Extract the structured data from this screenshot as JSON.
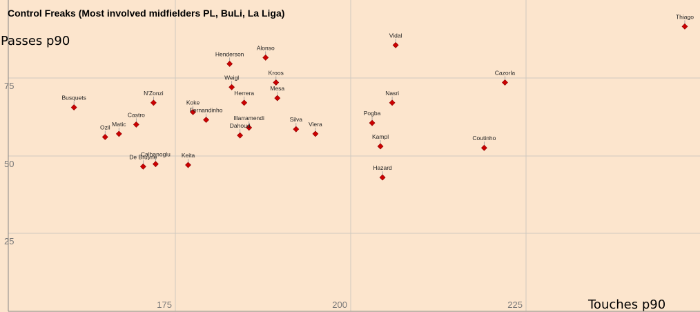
{
  "chart_data": {
    "type": "scatter",
    "title": "Control Freaks (Most involved midfielders PL, BuLi, La Liga)",
    "xlabel": "Touches p90",
    "ylabel": "Passes p90",
    "xlim": [
      150,
      250
    ],
    "ylim": [
      0,
      100
    ],
    "x_ticks": [
      "175",
      "200",
      "225"
    ],
    "y_ticks": [
      "25",
      "50",
      "75"
    ],
    "grid": true,
    "marker_color": "#cc0000",
    "points": [
      {
        "label": "Busquets",
        "x": 159.5,
        "y": 65.5
      },
      {
        "label": "Ozil",
        "x": 164,
        "y": 56
      },
      {
        "label": "Matic",
        "x": 166,
        "y": 57
      },
      {
        "label": "Castro",
        "x": 168.5,
        "y": 60
      },
      {
        "label": "N'Zonzi",
        "x": 171,
        "y": 67
      },
      {
        "label": "De Bruyne",
        "x": 169.5,
        "y": 46.5
      },
      {
        "label": "Calhanoglu",
        "x": 171.3,
        "y": 47.3
      },
      {
        "label": "Keita",
        "x": 176,
        "y": 47
      },
      {
        "label": "Koke",
        "x": 176.7,
        "y": 64
      },
      {
        "label": "Fernandinho",
        "x": 178.6,
        "y": 61.5
      },
      {
        "label": "Henderson",
        "x": 182,
        "y": 79.5
      },
      {
        "label": "Weigl",
        "x": 182.3,
        "y": 72
      },
      {
        "label": "Herrera",
        "x": 184.1,
        "y": 67
      },
      {
        "label": "Illarramendi",
        "x": 184.8,
        "y": 59
      },
      {
        "label": "Dahoud",
        "x": 183.5,
        "y": 56.5
      },
      {
        "label": "Alonso",
        "x": 187.2,
        "y": 81.5
      },
      {
        "label": "Kroos",
        "x": 188.7,
        "y": 73.5
      },
      {
        "label": "Mesa",
        "x": 188.9,
        "y": 68.5
      },
      {
        "label": "Silva",
        "x": 191.6,
        "y": 58.5
      },
      {
        "label": "Viera",
        "x": 194.4,
        "y": 57
      },
      {
        "label": "Vidal",
        "x": 206,
        "y": 85.5
      },
      {
        "label": "Pogba",
        "x": 202.6,
        "y": 60.5
      },
      {
        "label": "Nasri",
        "x": 205.5,
        "y": 67
      },
      {
        "label": "Kampl",
        "x": 203.8,
        "y": 53
      },
      {
        "label": "Hazard",
        "x": 204.1,
        "y": 43
      },
      {
        "label": "Cazorla",
        "x": 221.8,
        "y": 73.5
      },
      {
        "label": "Coutinho",
        "x": 218.8,
        "y": 52.5
      },
      {
        "label": "Thiago",
        "x": 247.8,
        "y": 91.5
      }
    ]
  }
}
